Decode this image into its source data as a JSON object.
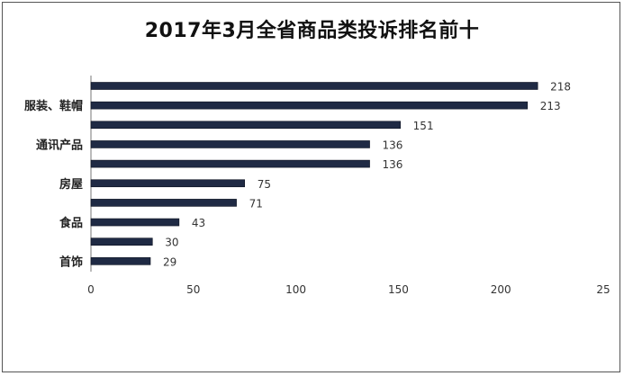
{
  "chart_data": {
    "type": "bar",
    "orientation": "horizontal",
    "title": "2017年3月全省商品类投诉排名前十",
    "xlabel": "",
    "ylabel": "",
    "xlim": [
      0,
      250
    ],
    "x_ticks": [
      "0",
      "50",
      "100",
      "150",
      "200",
      "25"
    ],
    "category_labels_shown": [
      {
        "label": "服装、鞋帽",
        "bar_index": 1
      },
      {
        "label": "通讯产品",
        "bar_index": 3
      },
      {
        "label": "房屋",
        "bar_index": 5
      },
      {
        "label": "食品",
        "bar_index": 7
      },
      {
        "label": "首饰",
        "bar_index": 9
      }
    ],
    "values": [
      218,
      213,
      151,
      136,
      136,
      75,
      71,
      43,
      30,
      29
    ],
    "grid": false,
    "bar_color": "#1f2a44"
  }
}
